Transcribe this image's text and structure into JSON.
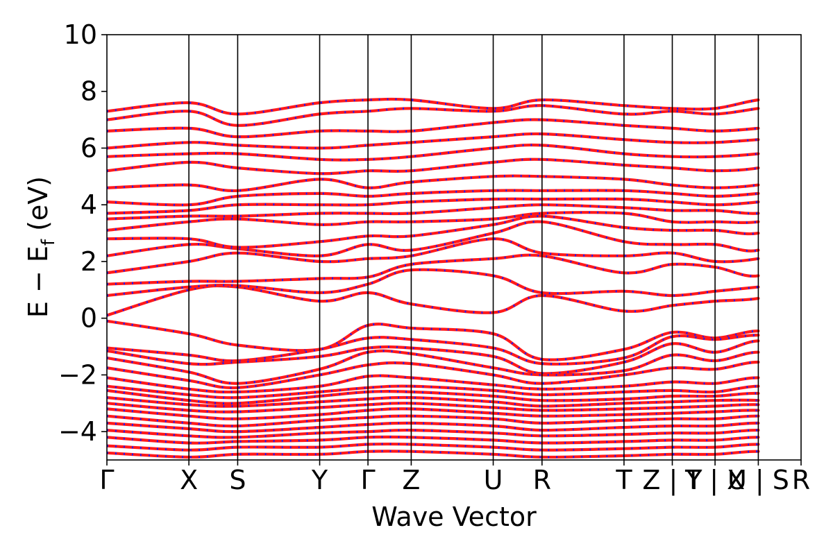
{
  "chart_data": {
    "type": "line",
    "title": "",
    "xlabel": "Wave Vector",
    "ylabel_parts": [
      "E − E",
      "f",
      " (eV)"
    ],
    "ylim": [
      -5,
      10
    ],
    "yticks": [
      {
        "value": -4,
        "label": "−4"
      },
      {
        "value": -2,
        "label": "−2"
      },
      {
        "value": 0,
        "label": "0"
      },
      {
        "value": 2,
        "label": "2"
      },
      {
        "value": 4,
        "label": "4"
      },
      {
        "value": 6,
        "label": "6"
      },
      {
        "value": 8,
        "label": "8"
      },
      {
        "value": 10,
        "label": "10"
      }
    ],
    "xlim": [
      0,
      13.8
    ],
    "kpoints": [
      {
        "x": 0.0,
        "label": "Γ"
      },
      {
        "x": 1.63,
        "label": "X"
      },
      {
        "x": 2.6,
        "label": "S"
      },
      {
        "x": 4.23,
        "label": "Y"
      },
      {
        "x": 5.19,
        "label": "Γ"
      },
      {
        "x": 6.05,
        "label": "Z"
      },
      {
        "x": 7.68,
        "label": "U"
      },
      {
        "x": 8.65,
        "label": "R"
      },
      {
        "x": 10.28,
        "label": "T"
      },
      {
        "x": 11.24,
        "label": "Z | Y"
      },
      {
        "x": 12.09,
        "label": "T | X"
      },
      {
        "x": 12.95,
        "label": "U | S"
      },
      {
        "x": 13.8,
        "label": "R"
      }
    ],
    "grid": false,
    "legend": "none",
    "series_colors": {
      "line": "#ff1a1a",
      "dash": "#1a1aff"
    },
    "bands_valence": [
      [
        -0.1,
        -0.55,
        -0.95,
        -1.1,
        -0.25,
        -0.35,
        -0.55,
        -1.45,
        -1.1,
        -0.5,
        -0.7,
        -0.45,
        -0.7,
        -1.4
      ],
      [
        -1.05,
        -1.3,
        -1.5,
        -1.1,
        -0.7,
        -0.75,
        -1.05,
        -1.6,
        -1.4,
        -0.65,
        -0.75,
        -0.6,
        -0.85,
        -1.35
      ],
      [
        -1.15,
        -1.6,
        -1.55,
        -1.35,
        -1.05,
        -1.05,
        -1.35,
        -1.95,
        -1.55,
        -0.9,
        -1.2,
        -0.8,
        -1.1,
        -1.5
      ],
      [
        -1.4,
        -1.9,
        -2.3,
        -1.8,
        -1.2,
        -1.25,
        -1.75,
        -2.0,
        -1.85,
        -1.3,
        -1.5,
        -1.2,
        -1.55,
        -1.85
      ],
      [
        -1.75,
        -2.2,
        -2.45,
        -2.0,
        -1.65,
        -1.6,
        -2.0,
        -2.3,
        -2.0,
        -1.75,
        -1.8,
        -1.55,
        -1.85,
        -1.95
      ],
      [
        -2.1,
        -2.5,
        -2.6,
        -2.4,
        -2.05,
        -2.1,
        -2.35,
        -2.5,
        -2.4,
        -2.25,
        -2.3,
        -2.1,
        -2.35,
        -2.25
      ],
      [
        -2.4,
        -2.7,
        -2.8,
        -2.6,
        -2.45,
        -2.4,
        -2.55,
        -2.7,
        -2.6,
        -2.55,
        -2.6,
        -2.4,
        -2.6,
        -2.6
      ],
      [
        -2.55,
        -2.9,
        -3.0,
        -2.75,
        -2.6,
        -2.6,
        -2.75,
        -2.9,
        -2.85,
        -2.75,
        -2.75,
        -2.65,
        -2.85,
        -2.85
      ],
      [
        -2.8,
        -3.05,
        -3.1,
        -2.95,
        -2.85,
        -2.8,
        -2.95,
        -3.1,
        -3.0,
        -2.95,
        -2.9,
        -2.9,
        -3.05,
        -3.05
      ],
      [
        -3.0,
        -3.25,
        -3.3,
        -3.15,
        -3.05,
        -3.0,
        -3.15,
        -3.25,
        -3.2,
        -3.15,
        -3.1,
        -3.05,
        -3.2,
        -3.25
      ],
      [
        -3.2,
        -3.45,
        -3.55,
        -3.4,
        -3.25,
        -3.2,
        -3.35,
        -3.45,
        -3.4,
        -3.35,
        -3.3,
        -3.25,
        -3.4,
        -3.45
      ],
      [
        -3.45,
        -3.7,
        -3.8,
        -3.6,
        -3.5,
        -3.45,
        -3.55,
        -3.7,
        -3.6,
        -3.55,
        -3.55,
        -3.45,
        -3.6,
        -3.7
      ],
      [
        -3.7,
        -3.9,
        -4.0,
        -3.85,
        -3.75,
        -3.7,
        -3.8,
        -3.95,
        -3.85,
        -3.8,
        -3.8,
        -3.7,
        -3.85,
        -3.95
      ],
      [
        -3.95,
        -4.15,
        -4.2,
        -4.05,
        -4.0,
        -3.95,
        -4.05,
        -4.15,
        -4.1,
        -4.05,
        -4.05,
        -3.95,
        -4.1,
        -4.15
      ],
      [
        -4.2,
        -4.4,
        -4.35,
        -4.3,
        -4.2,
        -4.2,
        -4.3,
        -4.4,
        -4.35,
        -4.3,
        -4.3,
        -4.2,
        -4.35,
        -4.4
      ],
      [
        -4.5,
        -4.65,
        -4.55,
        -4.55,
        -4.45,
        -4.45,
        -4.55,
        -4.65,
        -4.6,
        -4.55,
        -4.55,
        -4.45,
        -4.6,
        -4.65
      ],
      [
        -4.75,
        -4.9,
        -4.8,
        -4.8,
        -4.7,
        -4.7,
        -4.8,
        -4.9,
        -4.85,
        -4.8,
        -4.8,
        -4.7,
        -4.85,
        -4.9
      ]
    ],
    "bands_conduction": [
      [
        0.1,
        1.0,
        1.1,
        0.6,
        0.9,
        0.5,
        0.2,
        0.8,
        0.25,
        0.45,
        0.6,
        0.7,
        1.1,
        0.8
      ],
      [
        0.8,
        1.1,
        1.15,
        0.9,
        1.2,
        1.7,
        1.5,
        0.9,
        0.95,
        0.8,
        0.95,
        1.1,
        1.25,
        1.05
      ],
      [
        1.2,
        1.3,
        1.3,
        1.4,
        1.45,
        1.9,
        2.1,
        2.2,
        1.6,
        1.9,
        1.8,
        1.5,
        2.35,
        2.25
      ],
      [
        1.6,
        2.0,
        2.3,
        2.0,
        2.1,
        2.2,
        2.8,
        2.3,
        2.2,
        2.3,
        2.0,
        2.1,
        2.45,
        2.3
      ],
      [
        2.2,
        2.6,
        2.45,
        2.2,
        2.6,
        2.4,
        3.0,
        3.4,
        2.7,
        2.6,
        2.6,
        2.4,
        3.3,
        3.4
      ],
      [
        2.8,
        2.8,
        2.5,
        2.7,
        2.9,
        2.9,
        3.3,
        3.6,
        3.2,
        3.1,
        3.1,
        3.0,
        3.6,
        3.5
      ],
      [
        3.1,
        3.4,
        3.5,
        3.3,
        3.4,
        3.4,
        3.5,
        3.7,
        3.7,
        3.4,
        3.4,
        3.4,
        3.8,
        3.6
      ],
      [
        3.5,
        3.6,
        3.6,
        3.7,
        3.7,
        3.7,
        3.9,
        4.0,
        3.9,
        3.8,
        3.8,
        3.7,
        4.0,
        4.0
      ],
      [
        3.7,
        3.8,
        4.0,
        4.0,
        4.0,
        4.1,
        4.2,
        4.2,
        4.2,
        4.1,
        4.0,
        4.1,
        4.3,
        4.4
      ],
      [
        4.1,
        4.0,
        4.3,
        4.4,
        4.3,
        4.4,
        4.5,
        4.5,
        4.5,
        4.4,
        4.3,
        4.4,
        4.6,
        4.6
      ],
      [
        4.6,
        4.7,
        4.5,
        4.9,
        4.6,
        4.8,
        5.0,
        5.0,
        4.9,
        4.7,
        4.6,
        4.7,
        5.0,
        5.1
      ],
      [
        5.2,
        5.5,
        5.3,
        5.1,
        5.2,
        5.2,
        5.5,
        5.6,
        5.4,
        5.3,
        5.2,
        5.3,
        5.7,
        5.7
      ],
      [
        5.7,
        5.8,
        5.8,
        5.6,
        5.6,
        5.7,
        6.0,
        6.1,
        5.8,
        5.7,
        5.7,
        5.8,
        6.0,
        6.1
      ],
      [
        6.0,
        6.2,
        6.1,
        6.0,
        6.1,
        6.2,
        6.4,
        6.5,
        6.3,
        6.2,
        6.2,
        6.3,
        6.4,
        6.5
      ],
      [
        6.6,
        6.7,
        6.4,
        6.6,
        6.6,
        6.6,
        6.9,
        7.0,
        6.8,
        6.7,
        6.6,
        6.7,
        6.9,
        7.0
      ],
      [
        7.0,
        7.3,
        6.8,
        7.2,
        7.3,
        7.4,
        7.3,
        7.5,
        7.2,
        7.3,
        7.2,
        7.4,
        7.6,
        7.2
      ],
      [
        7.3,
        7.6,
        7.2,
        7.6,
        7.7,
        7.7,
        7.4,
        7.7,
        7.5,
        7.4,
        7.4,
        7.7,
        7.8,
        7.4
      ]
    ]
  }
}
